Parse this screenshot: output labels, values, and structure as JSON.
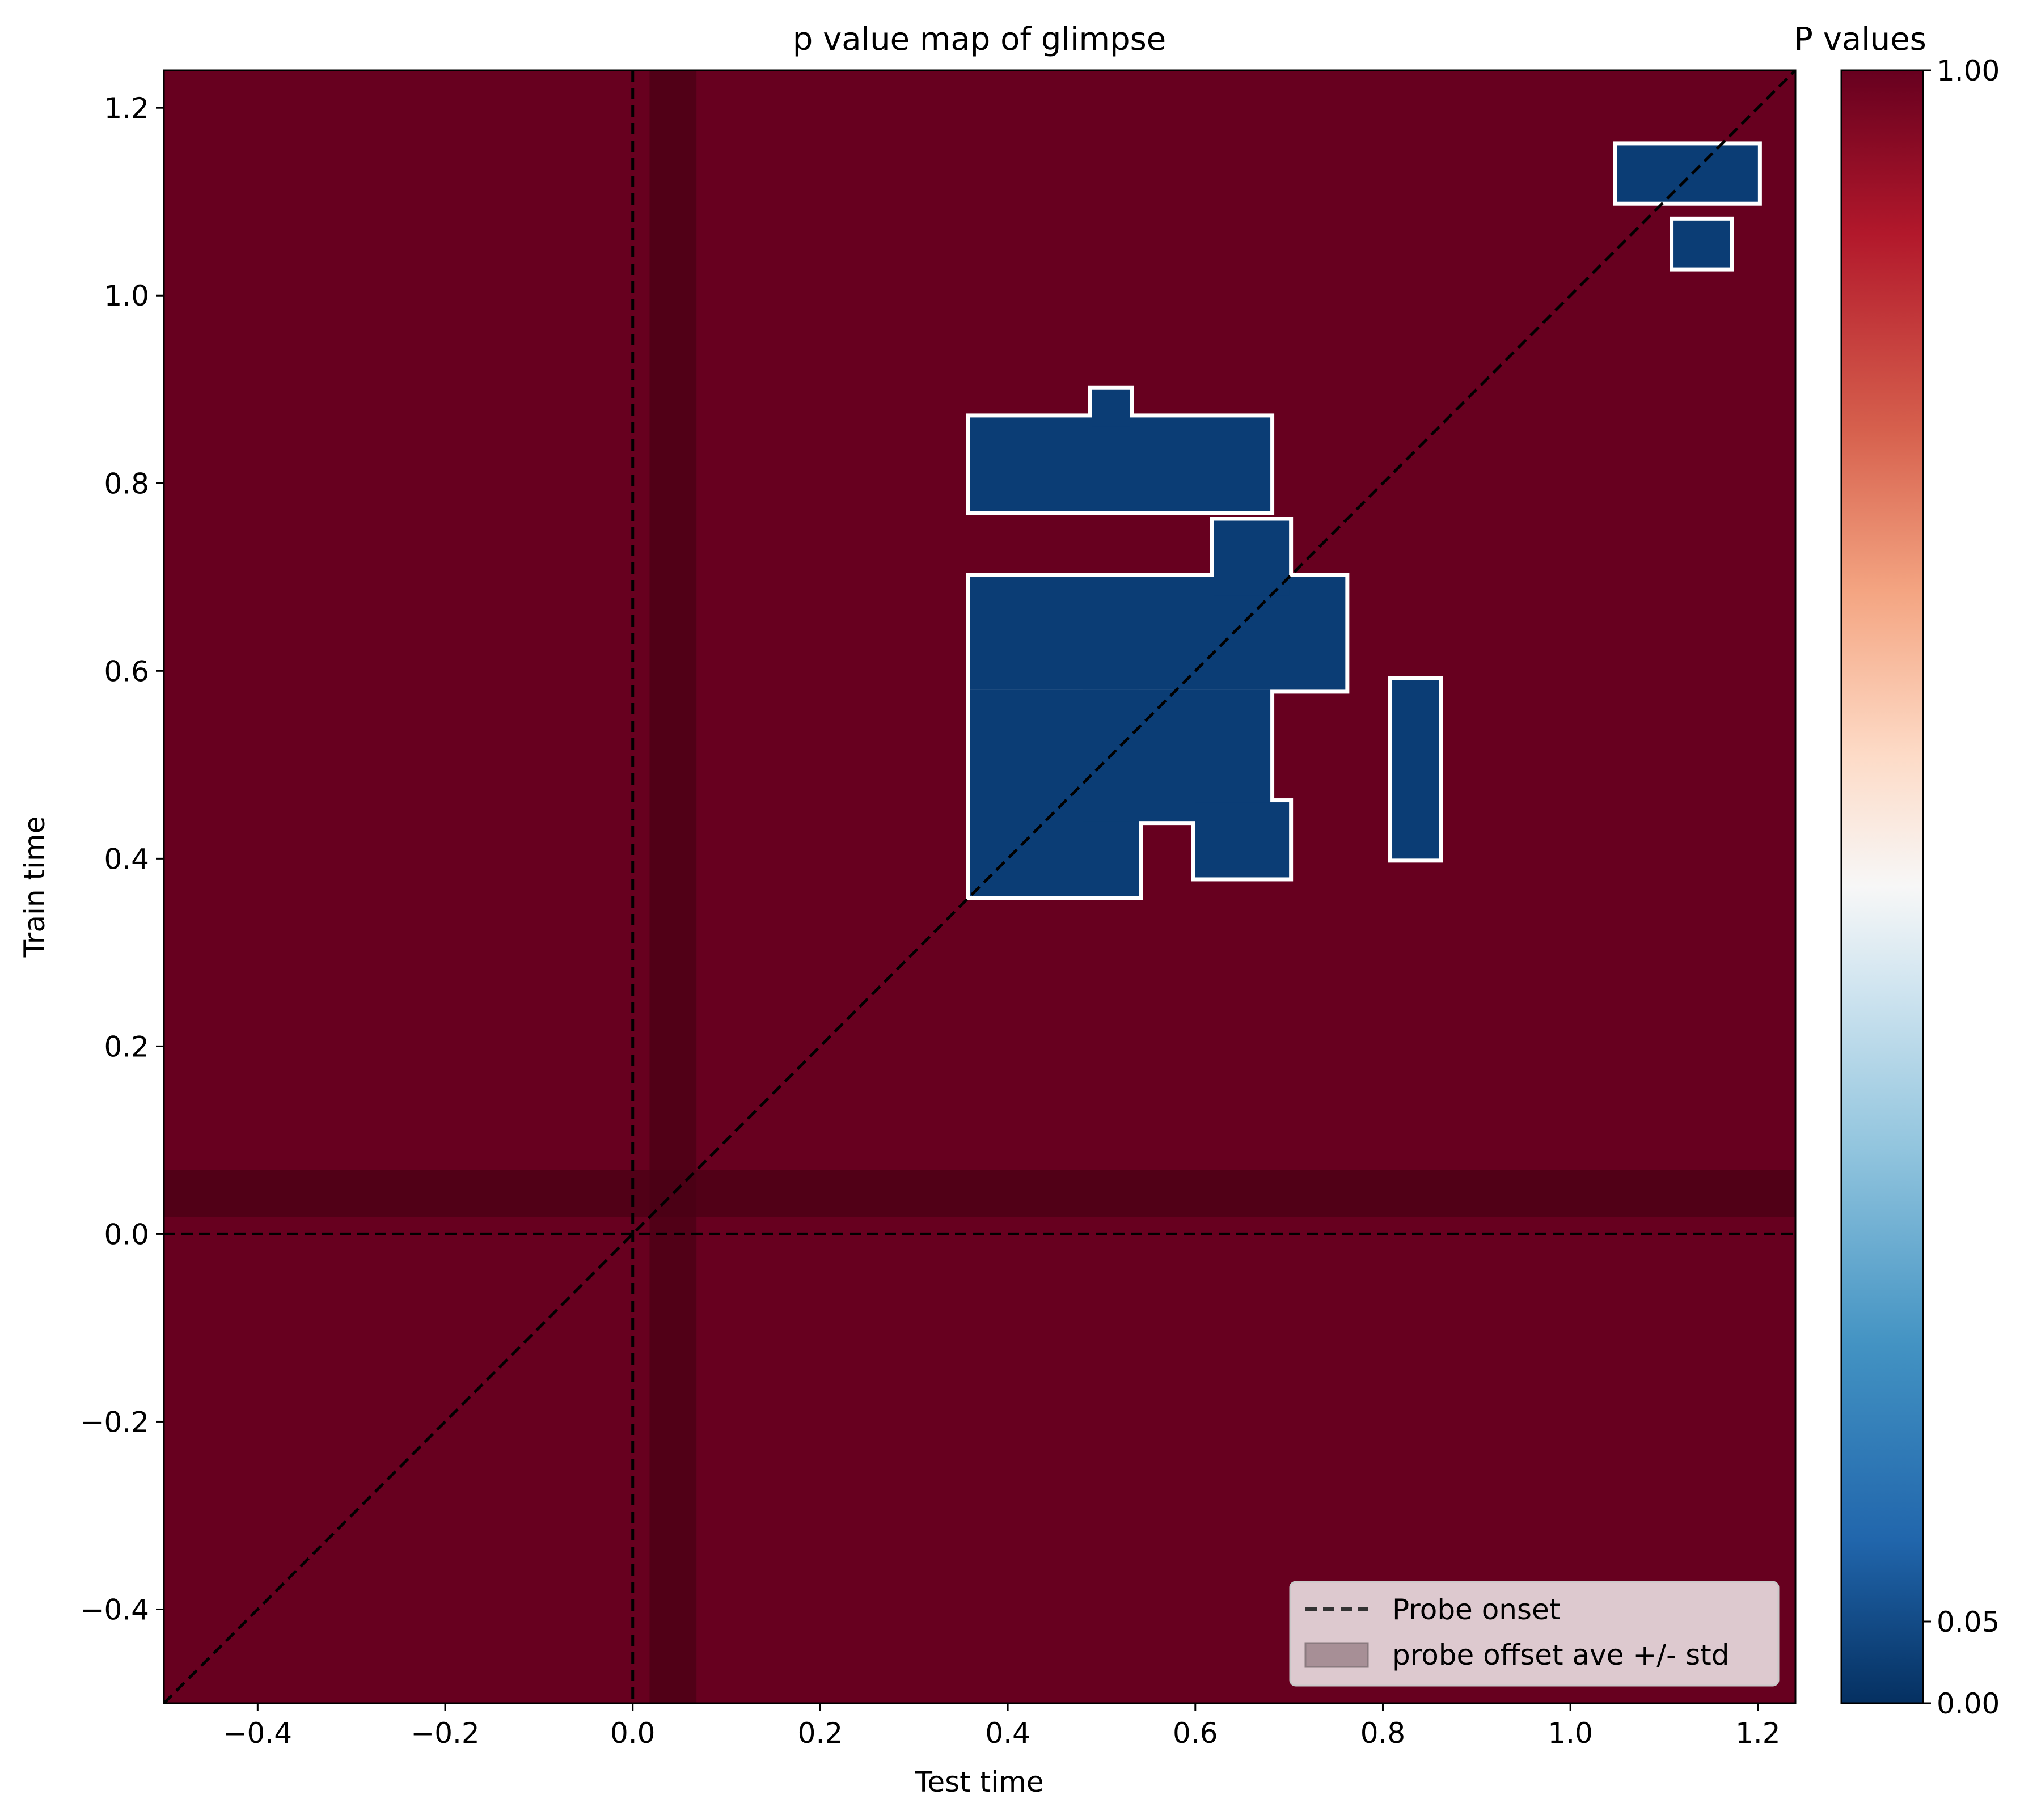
{
  "chart_data": {
    "type": "heatmap",
    "title": "p value map of glimpse",
    "xlabel": "Test time",
    "ylabel": "Train time",
    "xlim": [
      -0.5,
      1.24
    ],
    "ylim": [
      -0.5,
      1.24
    ],
    "x_ticks": [
      -0.4,
      -0.2,
      0.0,
      0.2,
      0.4,
      0.6,
      0.8,
      1.0,
      1.2
    ],
    "x_tick_labels": [
      "−0.4",
      "−0.2",
      "0.0",
      "0.2",
      "0.4",
      "0.6",
      "0.8",
      "1.0",
      "1.2"
    ],
    "y_ticks": [
      -0.4,
      -0.2,
      0.0,
      0.2,
      0.4,
      0.6,
      0.8,
      1.0,
      1.2
    ],
    "y_tick_labels": [
      "−0.4",
      "−0.2",
      "0.0",
      "0.2",
      "0.4",
      "0.6",
      "0.8",
      "1.0",
      "1.2"
    ],
    "background_p_value": 1.0,
    "significant_p_value": 0.0,
    "significant_regions": [
      {
        "x": [
          0.36,
          0.54
        ],
        "y": [
          0.36,
          0.58
        ]
      },
      {
        "x": [
          0.48,
          0.68
        ],
        "y": [
          0.44,
          0.58
        ]
      },
      {
        "x": [
          0.36,
          0.76
        ],
        "y": [
          0.58,
          0.7
        ]
      },
      {
        "x": [
          0.62,
          0.7
        ],
        "y": [
          0.68,
          0.76
        ]
      },
      {
        "x": [
          0.6,
          0.7
        ],
        "y": [
          0.38,
          0.46
        ]
      },
      {
        "x": [
          0.81,
          0.86
        ],
        "y": [
          0.4,
          0.59
        ]
      },
      {
        "x": [
          0.36,
          0.68
        ],
        "y": [
          0.77,
          0.87
        ]
      },
      {
        "x": [
          0.49,
          0.53
        ],
        "y": [
          0.86,
          0.9
        ]
      },
      {
        "x": [
          1.05,
          1.2
        ],
        "y": [
          1.1,
          1.16
        ]
      },
      {
        "x": [
          1.11,
          1.17
        ],
        "y": [
          1.03,
          1.08
        ]
      }
    ],
    "probe_onset": 0.0,
    "probe_offset_band": [
      0.018,
      0.068
    ],
    "diagonal": true,
    "legend": {
      "placement": "lower-right",
      "entries": [
        "Probe onset",
        "probe offset ave +/- std"
      ]
    },
    "colorbar": {
      "title": "P values",
      "colormap": "RdBu_r",
      "ticks": [
        0.0,
        0.05,
        1.0
      ],
      "tick_labels": [
        "0.00",
        "0.05",
        "1.00"
      ]
    },
    "colors": {
      "background": "#67001f",
      "significant": "#0b3d75",
      "contour": "#ffffff",
      "band": "#4a0016",
      "dash": "#000000"
    }
  }
}
